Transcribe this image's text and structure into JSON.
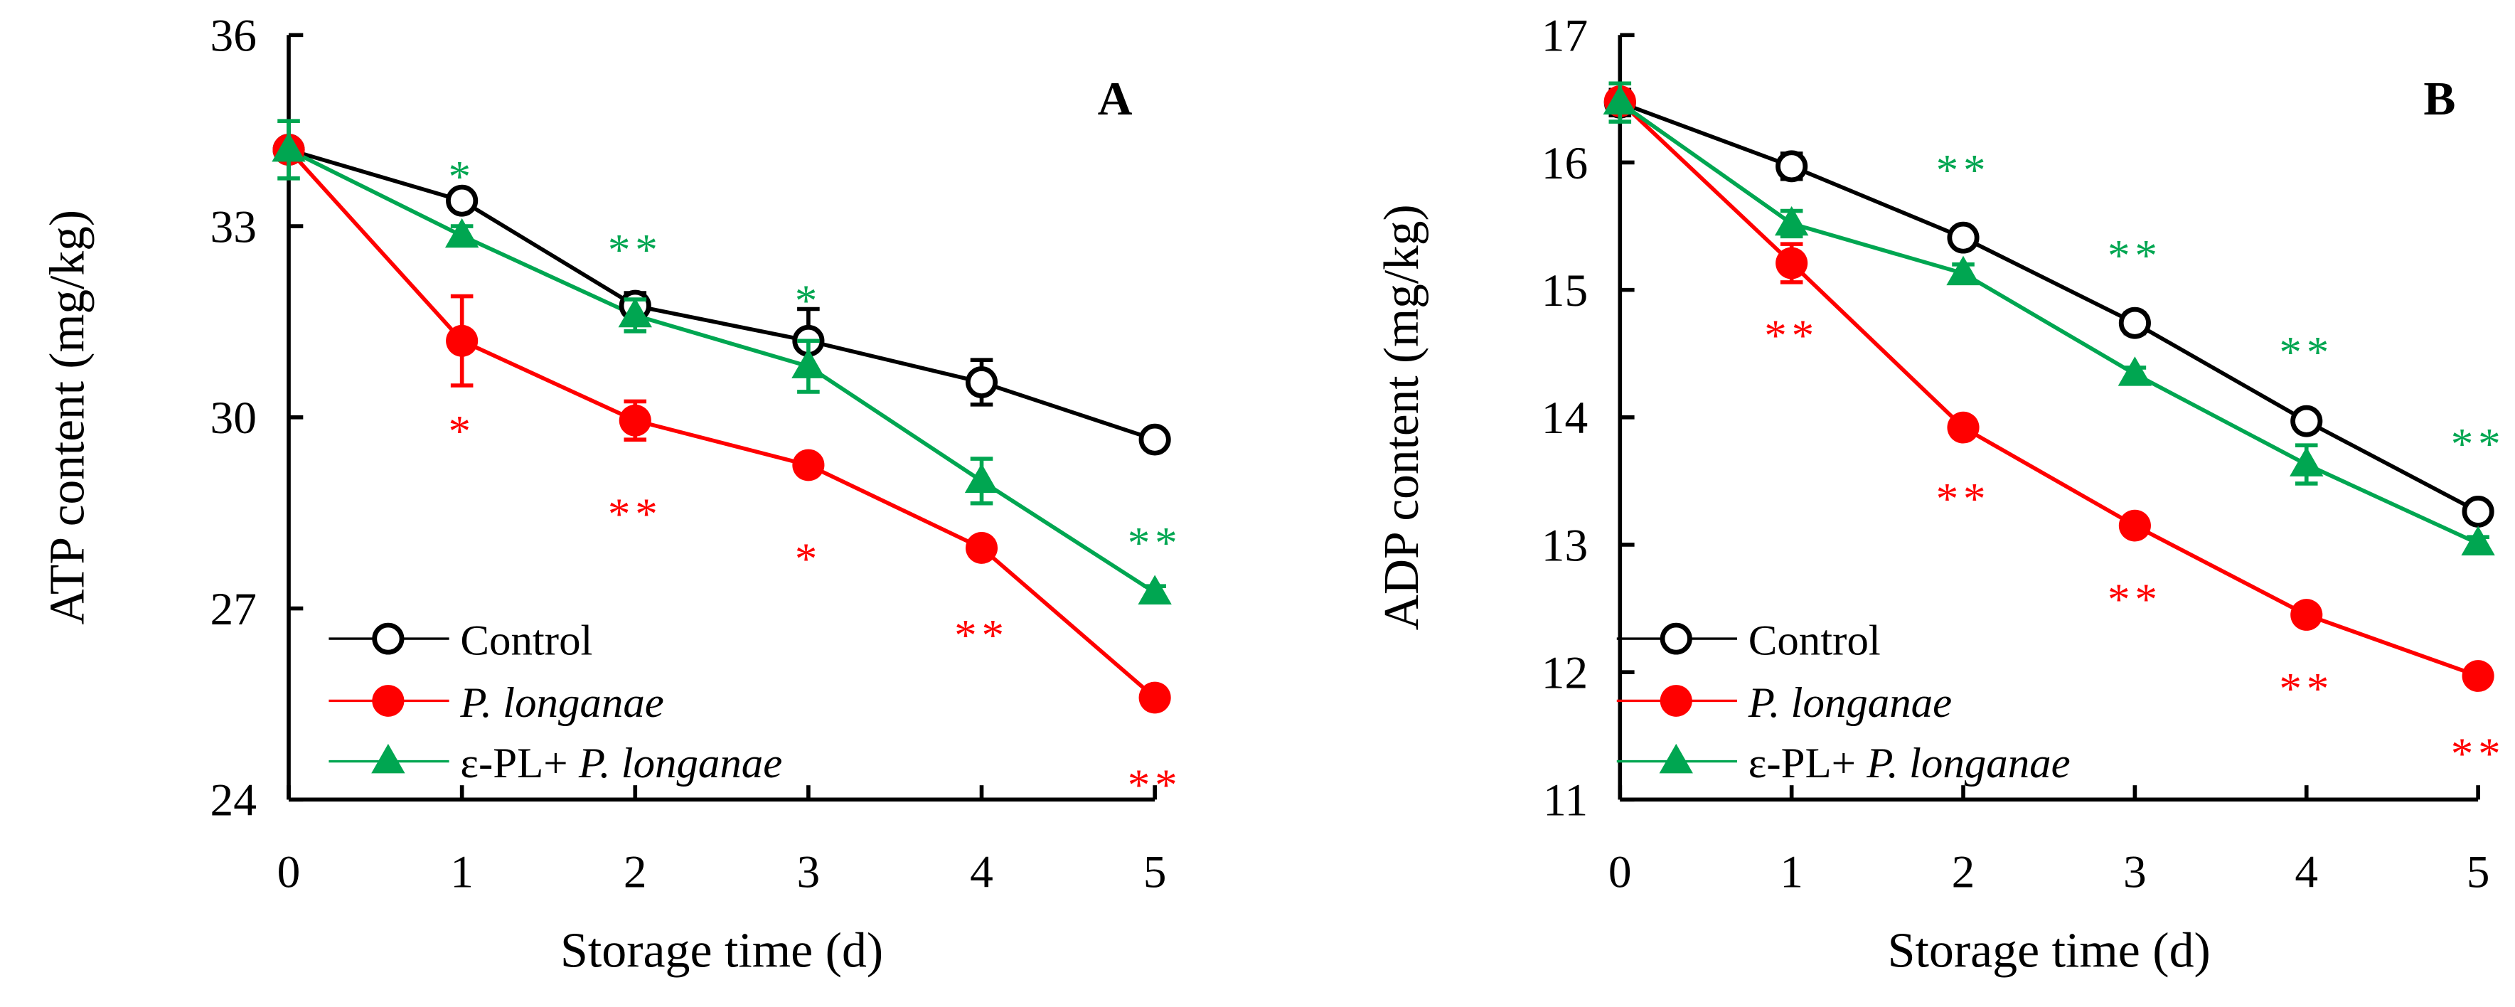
{
  "colors": {
    "control": "#000000",
    "plong": "#ff0000",
    "epl": "#00a651"
  },
  "legend": {
    "control": "Control",
    "plong": "P. longanae",
    "epl_prefix": "ε-PL+ ",
    "epl_italic": "P. longanae"
  },
  "chart_data": [
    {
      "type": "line",
      "panel": "A",
      "xlabel": "Storage time (d)",
      "ylabel": "ATP content (mg/kg)",
      "x": [
        0,
        1,
        2,
        3,
        4,
        5
      ],
      "xticks": [
        "0",
        "1",
        "2",
        "3",
        "4",
        "5"
      ],
      "ylim": [
        24,
        36
      ],
      "yticks": [
        "24",
        "27",
        "30",
        "33",
        "36"
      ],
      "legend_position": "bottom-left",
      "series": [
        {
          "name": "Control",
          "key": "control",
          "marker": "open-circle",
          "values": [
            34.2,
            33.4,
            31.75,
            31.2,
            30.55,
            29.65
          ],
          "errors": [
            0.1,
            0.1,
            0.2,
            0.5,
            0.35,
            0.15
          ]
        },
        {
          "name": "P. longanae",
          "key": "plong",
          "marker": "filled-circle",
          "values": [
            34.2,
            31.2,
            29.95,
            29.25,
            27.95,
            25.6
          ],
          "errors": [
            0.1,
            0.7,
            0.3,
            0.1,
            0.1,
            0.1
          ]
        },
        {
          "name": "ε-PL+ P. longanae",
          "key": "epl",
          "marker": "filled-triangle",
          "values": [
            34.2,
            32.85,
            31.6,
            30.8,
            29.0,
            27.25
          ],
          "errors": [
            0.45,
            0.15,
            0.25,
            0.4,
            0.35,
            0.1
          ]
        }
      ],
      "annotations": [
        {
          "x": 1,
          "y": 33.9,
          "text": "*",
          "key": "epl"
        },
        {
          "x": 2,
          "y": 32.75,
          "text": "**",
          "key": "epl"
        },
        {
          "x": 3,
          "y": 31.95,
          "text": "*",
          "key": "epl"
        },
        {
          "x": 5,
          "y": 28.15,
          "text": "**",
          "key": "epl"
        },
        {
          "x": 1,
          "y": 29.9,
          "text": "*",
          "key": "plong"
        },
        {
          "x": 2,
          "y": 28.6,
          "text": "**",
          "key": "plong"
        },
        {
          "x": 3,
          "y": 27.9,
          "text": "*",
          "key": "plong"
        },
        {
          "x": 4,
          "y": 26.7,
          "text": "**",
          "key": "plong"
        },
        {
          "x": 5,
          "y": 24.35,
          "text": "**",
          "key": "plong"
        }
      ]
    },
    {
      "type": "line",
      "panel": "B",
      "xlabel": "Storage time (d)",
      "ylabel": "ADP content (mg/kg)",
      "x": [
        0,
        1,
        2,
        3,
        4,
        5
      ],
      "xticks": [
        "0",
        "1",
        "2",
        "3",
        "4",
        "5"
      ],
      "ylim": [
        11,
        17
      ],
      "yticks": [
        "11",
        "12",
        "13",
        "14",
        "15",
        "16",
        "17"
      ],
      "legend_position": "bottom-left",
      "series": [
        {
          "name": "Control",
          "key": "control",
          "marker": "open-circle",
          "values": [
            16.47,
            15.97,
            15.41,
            14.74,
            13.97,
            13.26
          ],
          "errors": [
            0.1,
            0.1,
            0.04,
            0.08,
            0.05,
            0.05
          ]
        },
        {
          "name": "P. longanae",
          "key": "plong",
          "marker": "filled-circle",
          "values": [
            16.48,
            15.21,
            13.92,
            13.15,
            12.45,
            11.97
          ],
          "errors": [
            0.05,
            0.15,
            0.05,
            0.03,
            0.03,
            0.03
          ]
        },
        {
          "name": "ε-PL+ P. longanae",
          "key": "epl",
          "marker": "filled-triangle",
          "values": [
            16.47,
            15.52,
            15.13,
            14.34,
            13.63,
            13.01
          ],
          "errors": [
            0.15,
            0.1,
            0.07,
            0.05,
            0.15,
            0.05
          ]
        }
      ],
      "annotations": [
        {
          "x": 2,
          "y": 16.0,
          "text": "**",
          "key": "epl"
        },
        {
          "x": 3,
          "y": 15.33,
          "text": "**",
          "key": "epl"
        },
        {
          "x": 4,
          "y": 14.57,
          "text": "**",
          "key": "epl"
        },
        {
          "x": 5,
          "y": 13.85,
          "text": "**",
          "key": "epl"
        },
        {
          "x": 1,
          "y": 14.7,
          "text": "**",
          "key": "plong"
        },
        {
          "x": 2,
          "y": 13.42,
          "text": "**",
          "key": "plong"
        },
        {
          "x": 3,
          "y": 12.63,
          "text": "**",
          "key": "plong"
        },
        {
          "x": 4,
          "y": 11.93,
          "text": "**",
          "key": "plong"
        },
        {
          "x": 5,
          "y": 11.42,
          "text": "**",
          "key": "plong"
        }
      ]
    }
  ]
}
